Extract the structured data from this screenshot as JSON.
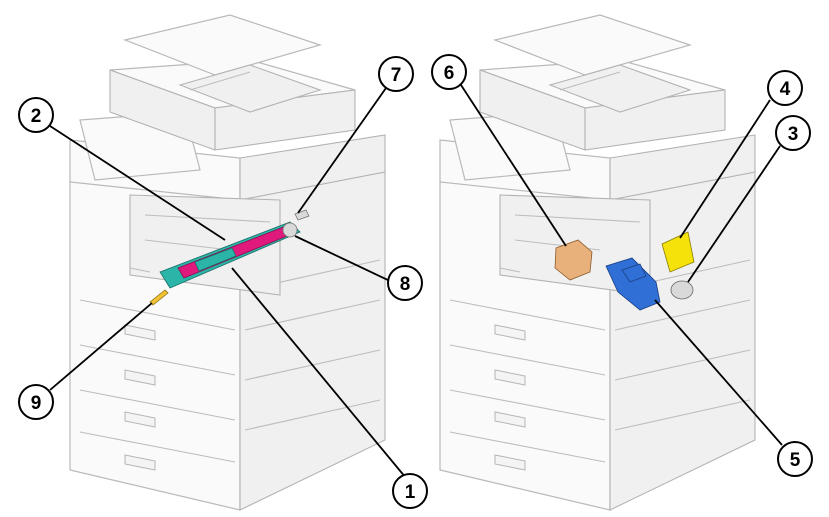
{
  "callouts": {
    "c1": "1",
    "c2": "2",
    "c3": "3",
    "c4": "4",
    "c5": "5",
    "c6": "6",
    "c7": "7",
    "c8": "8",
    "c9": "9"
  },
  "part_colors": {
    "transfer_unit_frame": "#2bb5a8",
    "transfer_belt_parts": "#e0197d",
    "small_gear_part": "#d9d9d9",
    "yellow_part": "#f4e20a",
    "blue_drive_part": "#2f6fd6",
    "tan_part": "#e8b07a",
    "end_pin": "#f1c232"
  },
  "icons": {
    "left_printer": "printer-machine-icon",
    "right_printer": "printer-machine-icon"
  }
}
